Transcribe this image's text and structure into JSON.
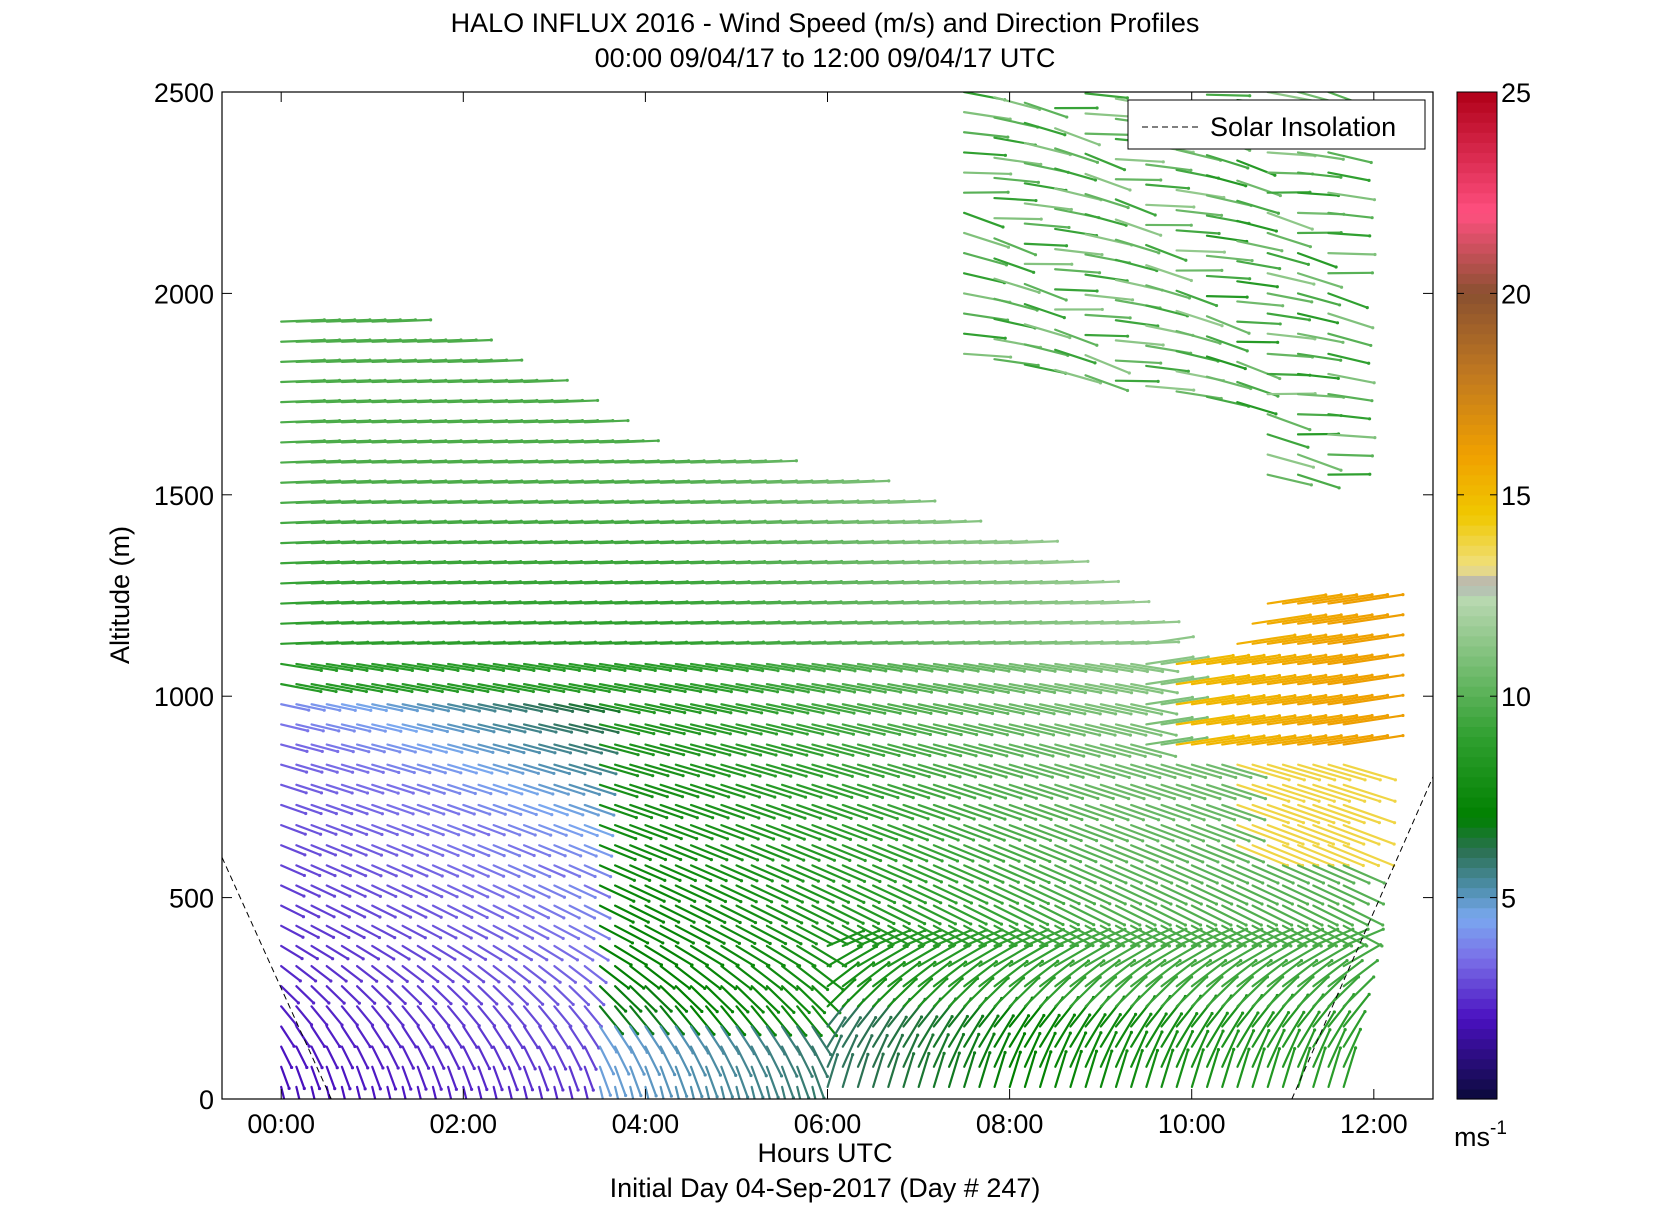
{
  "chart_data": {
    "type": "quiver",
    "title": "HALO INFLUX 2016 - Wind Speed (m/s) and Direction Profiles",
    "subtitle": "00:00 09/04/17 to 12:00 09/04/17  UTC",
    "xlabel": "Hours UTC",
    "xlabel2": "Initial Day 04-Sep-2017 (Day # 247)",
    "ylabel": "Altitude (m)",
    "xlim": [
      -0.65,
      12.65
    ],
    "ylim": [
      0,
      2500
    ],
    "x_ticks": [
      {
        "value": 0,
        "label": "00:00"
      },
      {
        "value": 2,
        "label": "02:00"
      },
      {
        "value": 4,
        "label": "04:00"
      },
      {
        "value": 6,
        "label": "06:00"
      },
      {
        "value": 8,
        "label": "08:00"
      },
      {
        "value": 10,
        "label": "10:00"
      },
      {
        "value": 12,
        "label": "12:00"
      }
    ],
    "y_ticks": [
      {
        "value": 0,
        "label": "0"
      },
      {
        "value": 500,
        "label": "500"
      },
      {
        "value": 1000,
        "label": "1000"
      },
      {
        "value": 1500,
        "label": "1500"
      },
      {
        "value": 2000,
        "label": "2000"
      },
      {
        "value": 2500,
        "label": "2500"
      }
    ],
    "legend": {
      "label": "Solar Insolation",
      "placement": "top-right"
    },
    "solar_insolation_left": [
      [
        -0.65,
        600
      ],
      [
        0.55,
        0
      ]
    ],
    "solar_insolation_right": [
      [
        11.1,
        0
      ],
      [
        12.65,
        800
      ]
    ],
    "colorbar": {
      "min": 0,
      "max": 25,
      "ticks": [
        {
          "value": 5,
          "label": "5"
        },
        {
          "value": 10,
          "label": "10"
        },
        {
          "value": 15,
          "label": "15"
        },
        {
          "value": 20,
          "label": "20"
        },
        {
          "value": 25,
          "label": "25"
        }
      ],
      "unit_label": "ms",
      "unit_exp": "-1",
      "stops": [
        {
          "v": 0,
          "c": "#0a0a3a"
        },
        {
          "v": 2,
          "c": "#4a10c0"
        },
        {
          "v": 3.5,
          "c": "#7a70e8"
        },
        {
          "v": 4.5,
          "c": "#7aa8f0"
        },
        {
          "v": 5.2,
          "c": "#5090b0"
        },
        {
          "v": 6.2,
          "c": "#2a7050"
        },
        {
          "v": 7,
          "c": "#008000"
        },
        {
          "v": 9,
          "c": "#30a030"
        },
        {
          "v": 12.4,
          "c": "#b8d8b0"
        },
        {
          "v": 12.8,
          "c": "#b4b4b4"
        },
        {
          "v": 13.2,
          "c": "#f0e080"
        },
        {
          "v": 14.5,
          "c": "#f0c800"
        },
        {
          "v": 16,
          "c": "#f0a000"
        },
        {
          "v": 18,
          "c": "#c07820"
        },
        {
          "v": 20,
          "c": "#8a5030"
        },
        {
          "v": 22,
          "c": "#ff5080"
        },
        {
          "v": 25,
          "c": "#b00018"
        }
      ]
    },
    "profiles": {
      "hour_start": 0.0,
      "hour_step": 0.1667,
      "hour_end": 11.8,
      "altitude_start": 30,
      "altitude_step": 50,
      "top_altitude_by_hour": [
        [
          0.0,
          1960
        ],
        [
          1.0,
          1950
        ],
        [
          2.0,
          1870
        ],
        [
          3.0,
          1740
        ],
        [
          3.5,
          1660
        ],
        [
          4.0,
          1600
        ],
        [
          5.0,
          1590
        ],
        [
          6.0,
          1550
        ],
        [
          6.5,
          1500
        ],
        [
          7.0,
          1450
        ],
        [
          8.0,
          1390
        ],
        [
          9.0,
          1250
        ],
        [
          9.5,
          1150
        ],
        [
          10.0,
          1080
        ],
        [
          10.5,
          1150
        ],
        [
          11.0,
          1280
        ],
        [
          11.8,
          1250
        ]
      ],
      "speed_by_altitude_hour": "low levels 1-3 m/s before 03:00, rising to 8-11 m/s aloft; 13-17 m/s near 1000 m after 10:00",
      "upper_cloud_hours": [
        7.5,
        11.8
      ],
      "upper_cloud_altitude": [
        1550,
        2500
      ]
    }
  }
}
